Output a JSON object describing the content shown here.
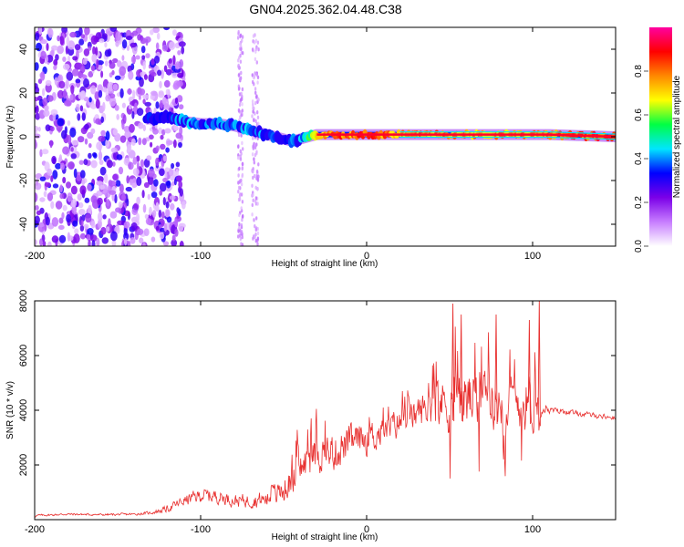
{
  "title": "GN04.2025.362.04.48.C38",
  "chart_data": [
    {
      "type": "heatmap",
      "title": "GN04.2025.362.04.48.C38",
      "xlabel": "Height of straight line (km)",
      "ylabel": "Frequency (Hz)",
      "xlim": [
        -200,
        150
      ],
      "ylim": [
        -50,
        50
      ],
      "x_ticks": [
        -200,
        -100,
        0,
        100
      ],
      "y_ticks": [
        -40,
        -20,
        0,
        20,
        40
      ],
      "colorbar": {
        "label": "Normalized spectral amplitude",
        "range": [
          0.0,
          1.0
        ],
        "ticks": [
          "0.0",
          "0.2",
          "0.4",
          "0.6",
          "0.8"
        ],
        "colors": [
          "#ffffff",
          "#c77dff",
          "#7b00e8",
          "#0000ff",
          "#00e5ff",
          "#00ff44",
          "#ffff00",
          "#ff8800",
          "#ff0000",
          "#ff00a0"
        ]
      },
      "ridge_track": {
        "x": [
          -133,
          -120,
          -110,
          -100,
          -90,
          -80,
          -70,
          -60,
          -50,
          -45,
          -40,
          -35,
          -30,
          -20,
          -10,
          0,
          20,
          40,
          60,
          80,
          100,
          110,
          150
        ],
        "freq_hz": [
          8,
          9,
          7,
          6,
          6,
          5,
          3,
          1,
          -1,
          -2,
          -1,
          0,
          1,
          1,
          1,
          1,
          1,
          1,
          1,
          1,
          1,
          1,
          0
        ],
        "amplitude": [
          0.35,
          0.4,
          0.45,
          0.45,
          0.45,
          0.45,
          0.45,
          0.45,
          0.4,
          0.4,
          0.45,
          0.6,
          0.8,
          0.9,
          0.9,
          0.9,
          0.85,
          0.85,
          0.85,
          0.85,
          0.85,
          0.9,
          0.95
        ]
      },
      "noise_region_x": [
        -200,
        -118
      ]
    },
    {
      "type": "line",
      "xlabel": "Height of straight line (km)",
      "ylabel": "SNR (10 * v/v)",
      "xlim": [
        -200,
        150
      ],
      "ylim": [
        0,
        8000
      ],
      "x_ticks": [
        -200,
        -100,
        0,
        100
      ],
      "y_ticks": [
        2000,
        4000,
        6000,
        8000
      ],
      "line_color": "#e8302f",
      "x": [
        -200,
        -180,
        -160,
        -140,
        -130,
        -120,
        -110,
        -100,
        -90,
        -80,
        -70,
        -60,
        -50,
        -45,
        -40,
        -30,
        -20,
        -10,
        0,
        10,
        20,
        30,
        40,
        50,
        60,
        70,
        80,
        90,
        100,
        105,
        110,
        120,
        130,
        140,
        150
      ],
      "values": [
        150,
        200,
        180,
        200,
        250,
        400,
        700,
        900,
        850,
        700,
        700,
        750,
        1100,
        1500,
        1900,
        2400,
        2500,
        2800,
        3000,
        3200,
        3600,
        3900,
        4200,
        4400,
        4400,
        4300,
        4300,
        4300,
        4300,
        4200,
        4000,
        3950,
        3850,
        3800,
        3700
      ],
      "noise_amplitude": [
        60,
        60,
        60,
        70,
        90,
        200,
        300,
        400,
        400,
        350,
        400,
        500,
        800,
        1000,
        1100,
        1100,
        1100,
        1000,
        900,
        900,
        900,
        900,
        1200,
        1800,
        1800,
        1500,
        1400,
        1500,
        1600,
        500,
        200,
        150,
        150,
        150,
        120
      ],
      "peaks": [
        {
          "x": 52,
          "y": 7900
        },
        {
          "x": 57,
          "y": 7500
        },
        {
          "x": 78,
          "y": 7500
        },
        {
          "x": 98,
          "y": 7300
        },
        {
          "x": 104,
          "y": 8000
        }
      ]
    }
  ]
}
